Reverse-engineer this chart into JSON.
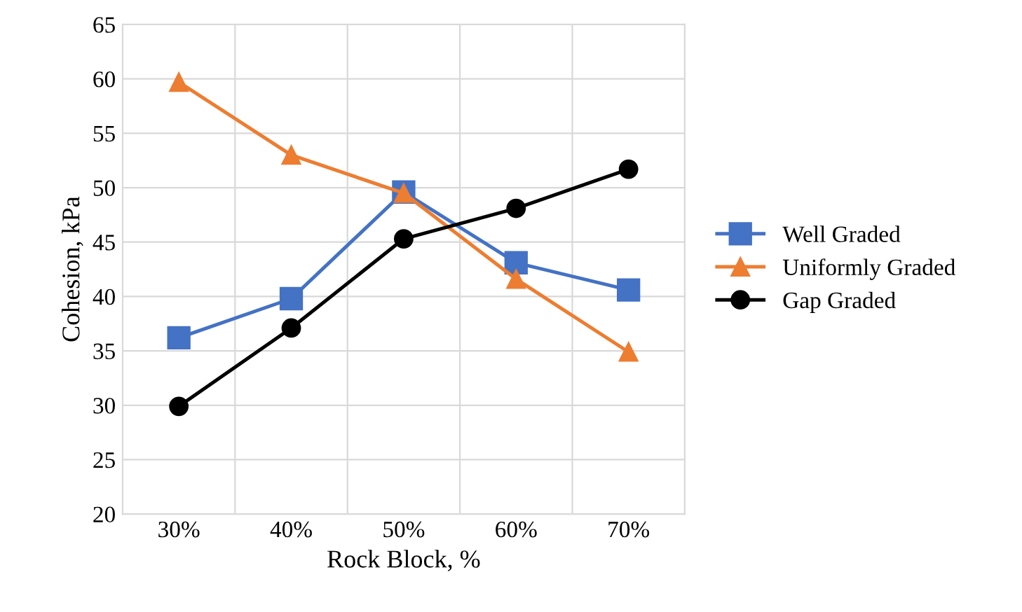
{
  "chart_data": {
    "type": "line",
    "xlabel": "Rock Block, %",
    "ylabel": "Cohesion, kPa",
    "categories": [
      "30%",
      "40%",
      "50%",
      "60%",
      "70%"
    ],
    "series": [
      {
        "name": "Well Graded",
        "color": "#4472c4",
        "marker": "square",
        "values": [
          36.2,
          39.8,
          49.6,
          43.1,
          40.6
        ]
      },
      {
        "name": "Uniformly Graded",
        "color": "#ed7d31",
        "marker": "triangle",
        "values": [
          59.7,
          53.0,
          49.5,
          41.6,
          34.9
        ]
      },
      {
        "name": "Gap Graded",
        "color": "#000000",
        "marker": "circle",
        "values": [
          29.9,
          37.1,
          45.3,
          48.1,
          51.7
        ]
      }
    ],
    "ylim": [
      20,
      65
    ],
    "yticks": [
      20,
      25,
      30,
      35,
      40,
      45,
      50,
      55,
      60,
      65
    ],
    "grid": true,
    "legend": "right"
  }
}
